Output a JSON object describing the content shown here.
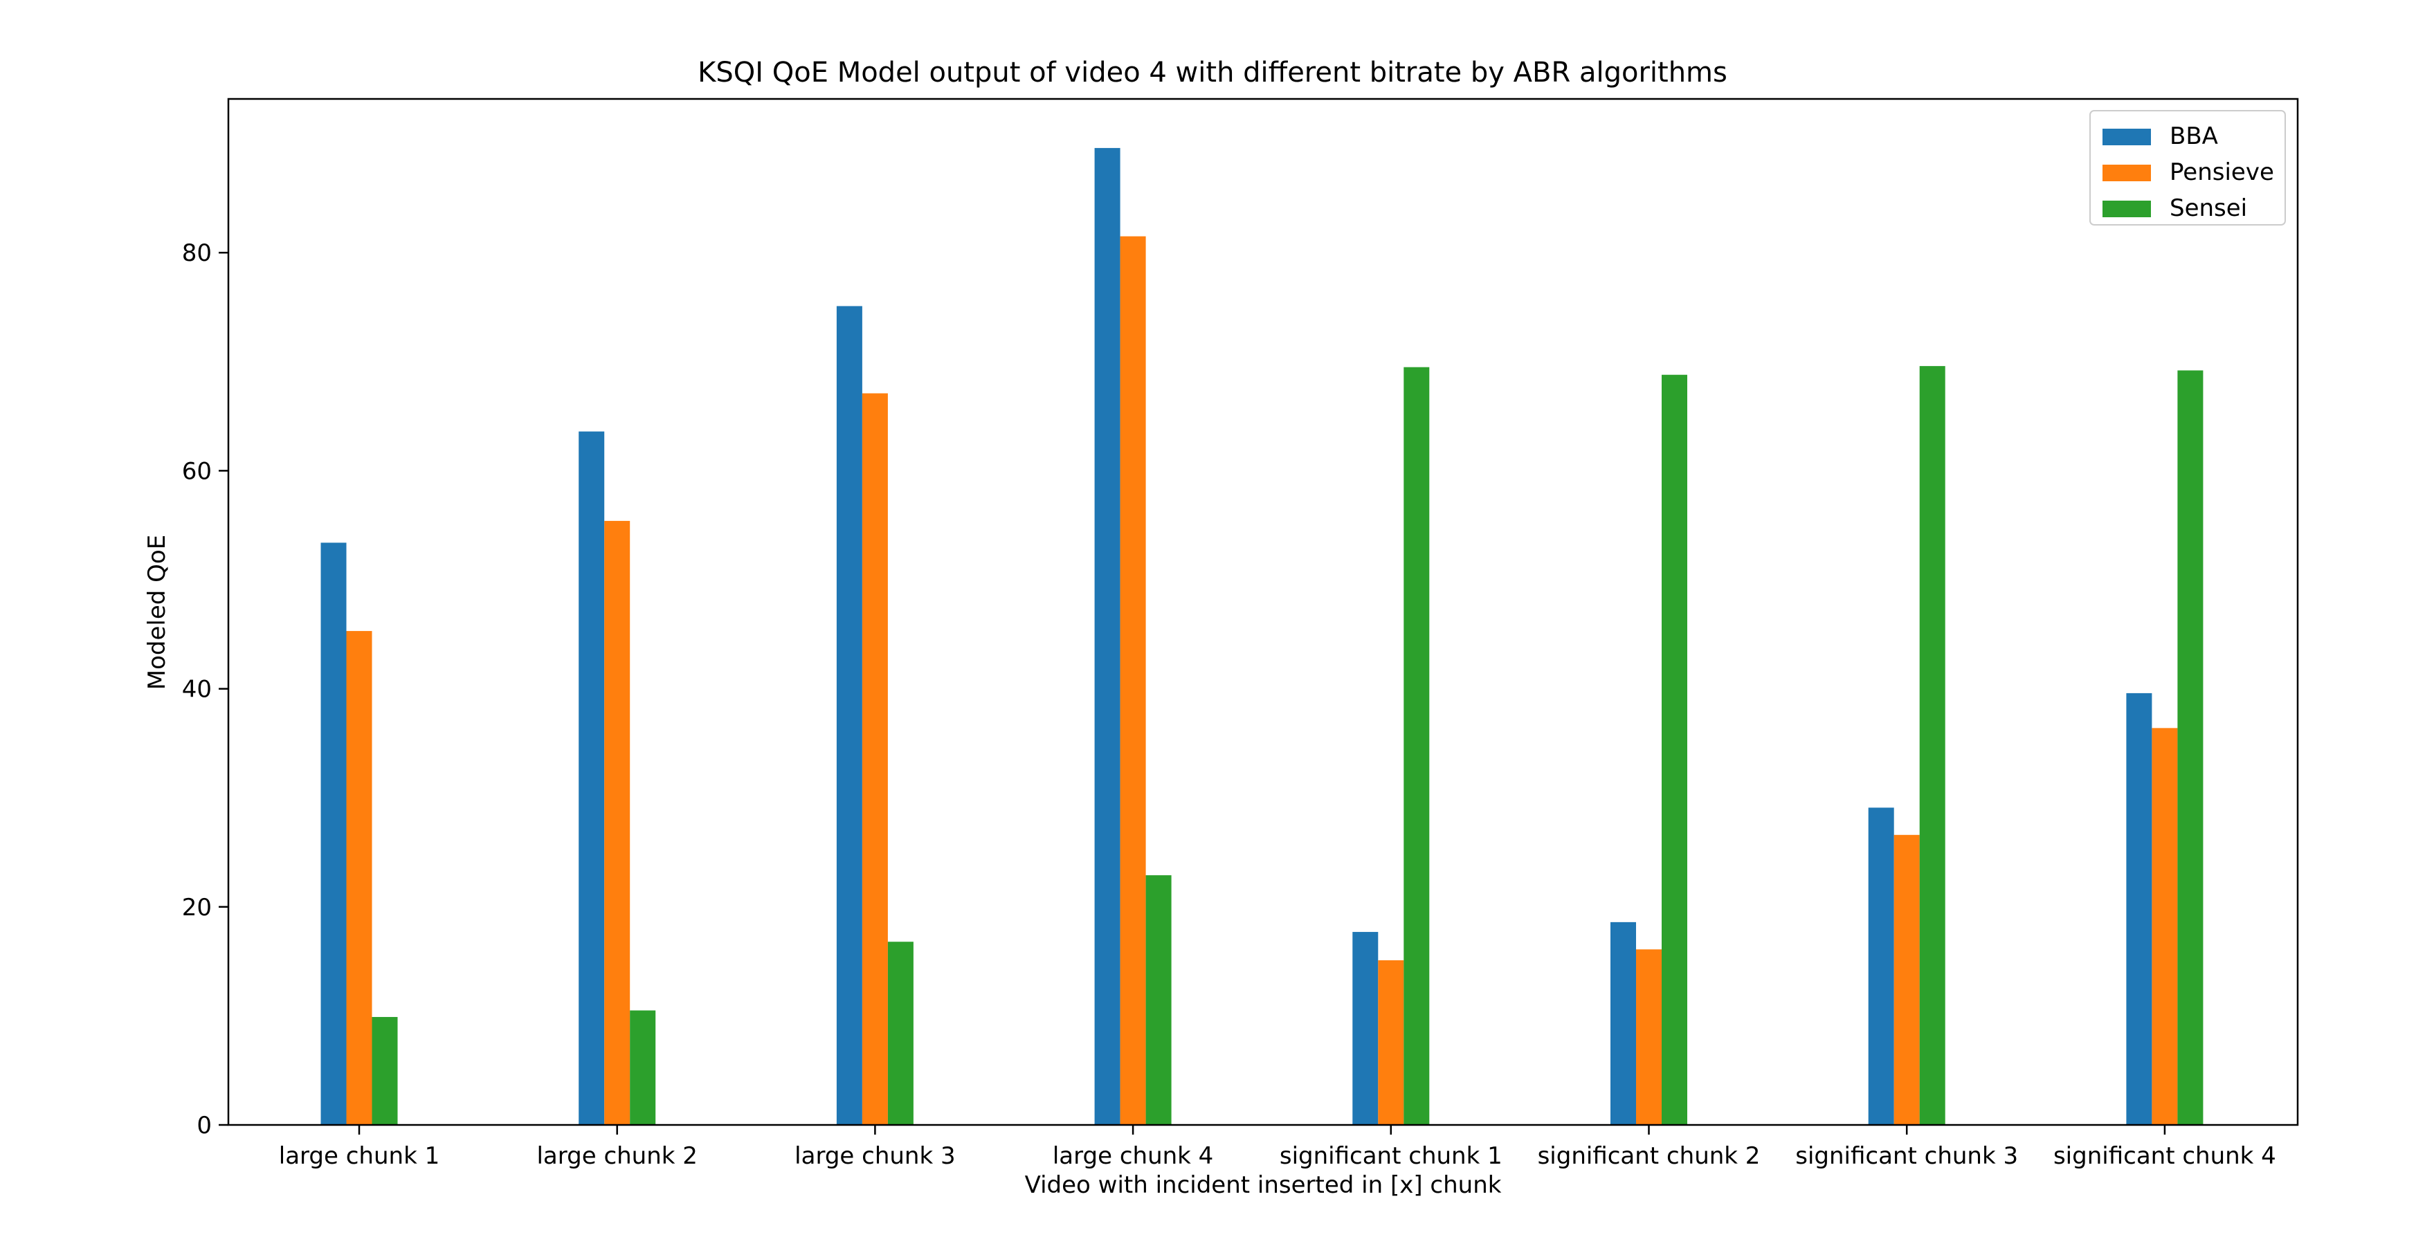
{
  "chart_data": {
    "type": "bar",
    "title": "KSQI QoE Model output of video 4 with different bitrate by ABR algorithms",
    "xlabel": "Video with incident inserted in [x] chunk",
    "ylabel": "Modeled QoE",
    "categories": [
      "large chunk 1",
      "large chunk 2",
      "large chunk 3",
      "large chunk 4",
      "significant chunk 1",
      "significant chunk 2",
      "significant chunk 3",
      "significant chunk 4"
    ],
    "series": [
      {
        "name": "BBA",
        "color": "#1f77b4",
        "values": [
          53.4,
          63.6,
          75.1,
          89.6,
          17.7,
          18.6,
          29.1,
          39.6
        ]
      },
      {
        "name": "Pensieve",
        "color": "#ff7f0e",
        "values": [
          45.3,
          55.4,
          67.1,
          81.5,
          15.1,
          16.1,
          26.6,
          36.4
        ]
      },
      {
        "name": "Sensei",
        "color": "#2ca02c",
        "values": [
          9.9,
          10.5,
          16.8,
          22.9,
          69.5,
          68.8,
          69.6,
          69.2
        ]
      }
    ],
    "yticks": [
      "0",
      "20",
      "40",
      "60",
      "80"
    ],
    "ylim": [
      0,
      94.1
    ],
    "legend_position": "top-right",
    "grid": false
  }
}
